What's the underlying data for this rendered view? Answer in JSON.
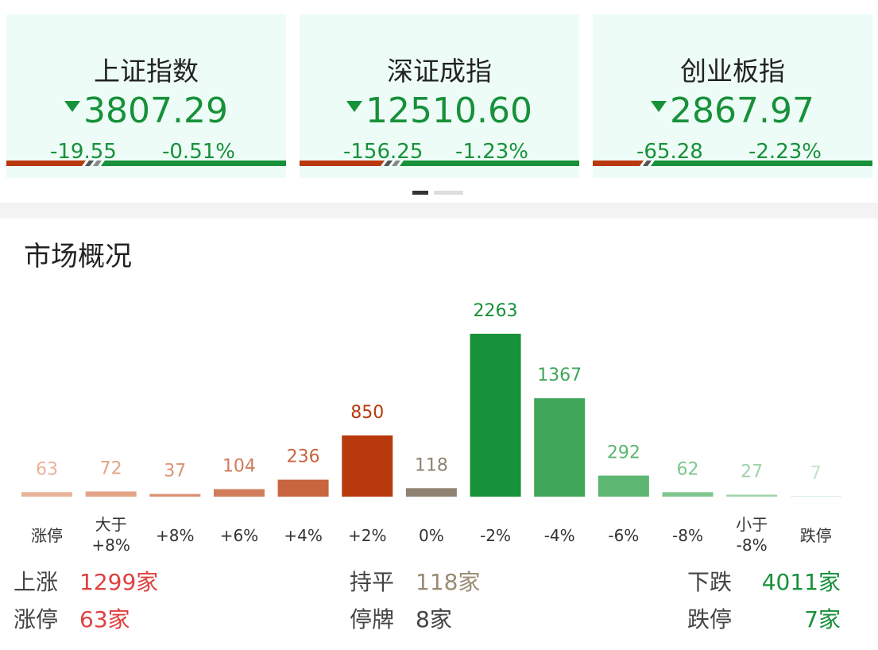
{
  "indices": [
    {
      "name": "上证指数",
      "value": "3807.29",
      "change": "-19.55",
      "pct": "-0.51%"
    },
    {
      "name": "深证成指",
      "value": "12510.60",
      "change": "-156.25",
      "pct": "-1.23%"
    },
    {
      "name": "创业板指",
      "value": "2867.97",
      "change": "-65.28",
      "pct": "-2.23%"
    }
  ],
  "chart_data": {
    "type": "bar",
    "title": "市场概况",
    "categories": [
      "涨停",
      "大于\n+8%",
      "+8%",
      "+6%",
      "+4%",
      "+2%",
      "0%",
      "-2%",
      "-4%",
      "-6%",
      "-8%",
      "小于\n-8%",
      "跌停"
    ],
    "values": [
      63,
      72,
      37,
      104,
      236,
      850,
      118,
      2263,
      1367,
      292,
      62,
      27,
      7
    ],
    "colors": [
      "#e8b39a",
      "#e2a386",
      "#db9274",
      "#d17c5b",
      "#c8653f",
      "#b83a0c",
      "#8e8272",
      "#17913a",
      "#40a65a",
      "#5db671",
      "#7fc58e",
      "#9fd3aa",
      "#c3e3ca"
    ]
  },
  "summary": [
    {
      "label": "上涨",
      "value": "1299家"
    },
    {
      "label": "持平",
      "value": "118家"
    },
    {
      "label": "下跌",
      "value": "4011家"
    },
    {
      "label": "涨停",
      "value": "63家"
    },
    {
      "label": "停牌",
      "value": "8家"
    },
    {
      "label": "跌停",
      "value": "7家"
    }
  ]
}
